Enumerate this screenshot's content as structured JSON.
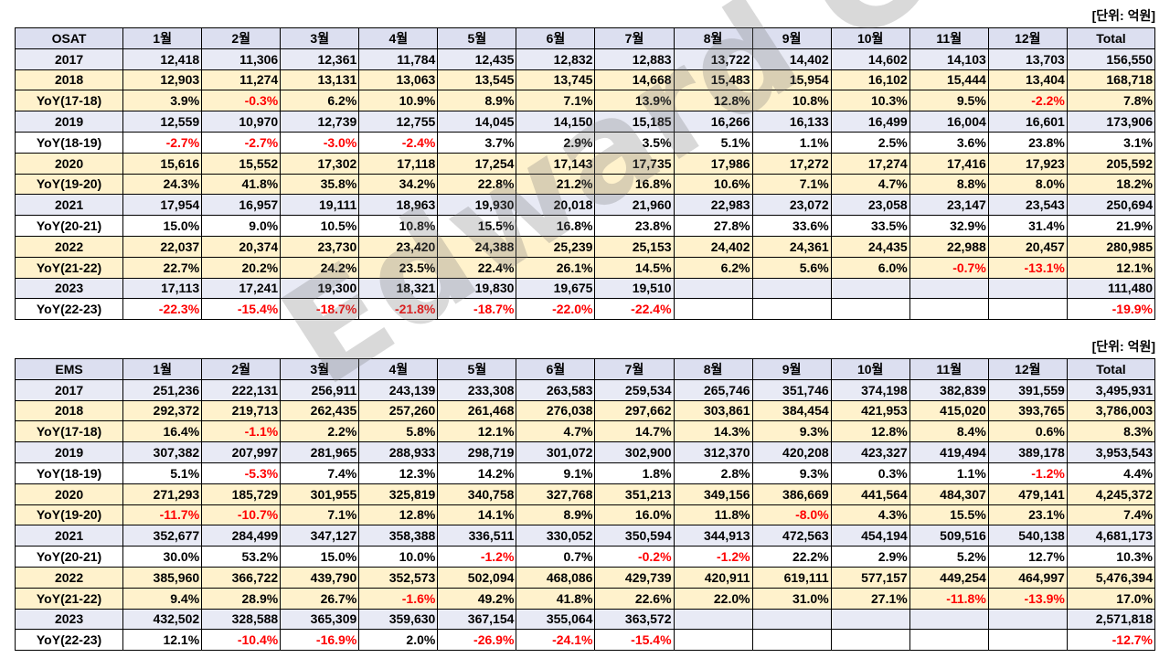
{
  "unit_label": "[단위: 억원]",
  "watermark": "Edward Choi",
  "months": [
    "1월",
    "2월",
    "3월",
    "4월",
    "5월",
    "6월",
    "7월",
    "8월",
    "9월",
    "10월",
    "11월",
    "12월"
  ],
  "total_label": "Total",
  "osat": {
    "label": "OSAT",
    "rows": [
      {
        "label": "2017",
        "type": "year",
        "cells": [
          "12,418",
          "11,306",
          "12,361",
          "11,784",
          "12,435",
          "12,832",
          "12,883",
          "13,722",
          "14,402",
          "14,602",
          "14,103",
          "13,703",
          "156,550"
        ]
      },
      {
        "label": "2018",
        "type": "year",
        "hl": true,
        "cells": [
          "12,903",
          "11,274",
          "13,131",
          "13,063",
          "13,545",
          "13,745",
          "14,668",
          "15,483",
          "15,954",
          "16,102",
          "15,444",
          "13,404",
          "168,718"
        ]
      },
      {
        "label": "YoY(17-18)",
        "type": "yoy",
        "hl": true,
        "cells": [
          "3.9%",
          "-0.3%",
          "6.2%",
          "10.9%",
          "8.9%",
          "7.1%",
          "13.9%",
          "12.8%",
          "10.8%",
          "10.3%",
          "9.5%",
          "-2.2%",
          "7.8%"
        ]
      },
      {
        "label": "2019",
        "type": "year",
        "cells": [
          "12,559",
          "10,970",
          "12,739",
          "12,755",
          "14,045",
          "14,150",
          "15,185",
          "16,266",
          "16,133",
          "16,499",
          "16,004",
          "16,601",
          "173,906"
        ]
      },
      {
        "label": "YoY(18-19)",
        "type": "yoy",
        "cells": [
          "-2.7%",
          "-2.7%",
          "-3.0%",
          "-2.4%",
          "3.7%",
          "2.9%",
          "3.5%",
          "5.1%",
          "1.1%",
          "2.5%",
          "3.6%",
          "23.8%",
          "3.1%"
        ]
      },
      {
        "label": "2020",
        "type": "year",
        "hl": true,
        "cells": [
          "15,616",
          "15,552",
          "17,302",
          "17,118",
          "17,254",
          "17,143",
          "17,735",
          "17,986",
          "17,272",
          "17,274",
          "17,416",
          "17,923",
          "205,592"
        ]
      },
      {
        "label": "YoY(19-20)",
        "type": "yoy",
        "hl": true,
        "cells": [
          "24.3%",
          "41.8%",
          "35.8%",
          "34.2%",
          "22.8%",
          "21.2%",
          "16.8%",
          "10.6%",
          "7.1%",
          "4.7%",
          "8.8%",
          "8.0%",
          "18.2%"
        ]
      },
      {
        "label": "2021",
        "type": "year",
        "cells": [
          "17,954",
          "16,957",
          "19,111",
          "18,963",
          "19,930",
          "20,018",
          "21,960",
          "22,983",
          "23,072",
          "23,058",
          "23,147",
          "23,543",
          "250,694"
        ]
      },
      {
        "label": "YoY(20-21)",
        "type": "yoy",
        "cells": [
          "15.0%",
          "9.0%",
          "10.5%",
          "10.8%",
          "15.5%",
          "16.8%",
          "23.8%",
          "27.8%",
          "33.6%",
          "33.5%",
          "32.9%",
          "31.4%",
          "21.9%"
        ]
      },
      {
        "label": "2022",
        "type": "year",
        "hl": true,
        "cells": [
          "22,037",
          "20,374",
          "23,730",
          "23,420",
          "24,388",
          "25,239",
          "25,153",
          "24,402",
          "24,361",
          "24,435",
          "22,988",
          "20,457",
          "280,985"
        ]
      },
      {
        "label": "YoY(21-22)",
        "type": "yoy",
        "hl": true,
        "cells": [
          "22.7%",
          "20.2%",
          "24.2%",
          "23.5%",
          "22.4%",
          "26.1%",
          "14.5%",
          "6.2%",
          "5.6%",
          "6.0%",
          "-0.7%",
          "-13.1%",
          "12.1%"
        ]
      },
      {
        "label": "2023",
        "type": "year",
        "cells": [
          "17,113",
          "17,241",
          "19,300",
          "18,321",
          "19,830",
          "19,675",
          "19,510",
          "",
          "",
          "",
          "",
          "",
          "111,480"
        ]
      },
      {
        "label": "YoY(22-23)",
        "type": "yoy",
        "cells": [
          "-22.3%",
          "-15.4%",
          "-18.7%",
          "-21.8%",
          "-18.7%",
          "-22.0%",
          "-22.4%",
          "",
          "",
          "",
          "",
          "",
          "-19.9%"
        ]
      }
    ]
  },
  "ems": {
    "label": "EMS",
    "rows": [
      {
        "label": "2017",
        "type": "year",
        "cells": [
          "251,236",
          "222,131",
          "256,911",
          "243,139",
          "233,308",
          "263,583",
          "259,534",
          "265,746",
          "351,746",
          "374,198",
          "382,839",
          "391,559",
          "3,495,931"
        ]
      },
      {
        "label": "2018",
        "type": "year",
        "hl": true,
        "cells": [
          "292,372",
          "219,713",
          "262,435",
          "257,260",
          "261,468",
          "276,038",
          "297,662",
          "303,861",
          "384,454",
          "421,953",
          "415,020",
          "393,765",
          "3,786,003"
        ]
      },
      {
        "label": "YoY(17-18)",
        "type": "yoy",
        "hl": true,
        "cells": [
          "16.4%",
          "-1.1%",
          "2.2%",
          "5.8%",
          "12.1%",
          "4.7%",
          "14.7%",
          "14.3%",
          "9.3%",
          "12.8%",
          "8.4%",
          "0.6%",
          "8.3%"
        ]
      },
      {
        "label": "2019",
        "type": "year",
        "cells": [
          "307,382",
          "207,997",
          "281,965",
          "288,933",
          "298,719",
          "301,072",
          "302,900",
          "312,370",
          "420,208",
          "423,327",
          "419,494",
          "389,178",
          "3,953,543"
        ]
      },
      {
        "label": "YoY(18-19)",
        "type": "yoy",
        "cells": [
          "5.1%",
          "-5.3%",
          "7.4%",
          "12.3%",
          "14.2%",
          "9.1%",
          "1.8%",
          "2.8%",
          "9.3%",
          "0.3%",
          "1.1%",
          "-1.2%",
          "4.4%"
        ]
      },
      {
        "label": "2020",
        "type": "year",
        "hl": true,
        "cells": [
          "271,293",
          "185,729",
          "301,955",
          "325,819",
          "340,758",
          "327,768",
          "351,213",
          "349,156",
          "386,669",
          "441,564",
          "484,307",
          "479,141",
          "4,245,372"
        ]
      },
      {
        "label": "YoY(19-20)",
        "type": "yoy",
        "hl": true,
        "cells": [
          "-11.7%",
          "-10.7%",
          "7.1%",
          "12.8%",
          "14.1%",
          "8.9%",
          "16.0%",
          "11.8%",
          "-8.0%",
          "4.3%",
          "15.5%",
          "23.1%",
          "7.4%"
        ]
      },
      {
        "label": "2021",
        "type": "year",
        "cells": [
          "352,677",
          "284,499",
          "347,127",
          "358,388",
          "336,511",
          "330,052",
          "350,594",
          "344,913",
          "472,563",
          "454,194",
          "509,516",
          "540,138",
          "4,681,173"
        ]
      },
      {
        "label": "YoY(20-21)",
        "type": "yoy",
        "cells": [
          "30.0%",
          "53.2%",
          "15.0%",
          "10.0%",
          "-1.2%",
          "0.7%",
          "-0.2%",
          "-1.2%",
          "22.2%",
          "2.9%",
          "5.2%",
          "12.7%",
          "10.3%"
        ]
      },
      {
        "label": "2022",
        "type": "year",
        "hl": true,
        "cells": [
          "385,960",
          "366,722",
          "439,790",
          "352,573",
          "502,094",
          "468,086",
          "429,739",
          "420,911",
          "619,111",
          "577,157",
          "449,254",
          "464,997",
          "5,476,394"
        ]
      },
      {
        "label": "YoY(21-22)",
        "type": "yoy",
        "hl": true,
        "cells": [
          "9.4%",
          "28.9%",
          "26.7%",
          "-1.6%",
          "49.2%",
          "41.8%",
          "22.6%",
          "22.0%",
          "31.0%",
          "27.1%",
          "-11.8%",
          "-13.9%",
          "17.0%"
        ]
      },
      {
        "label": "2023",
        "type": "year",
        "cells": [
          "432,502",
          "328,588",
          "365,309",
          "359,630",
          "367,154",
          "355,064",
          "363,572",
          "",
          "",
          "",
          "",
          "",
          "2,571,818"
        ]
      },
      {
        "label": "YoY(22-23)",
        "type": "yoy",
        "cells": [
          "12.1%",
          "-10.4%",
          "-16.9%",
          "2.0%",
          "-26.9%",
          "-24.1%",
          "-15.4%",
          "",
          "",
          "",
          "",
          "",
          "-12.7%"
        ]
      }
    ]
  }
}
